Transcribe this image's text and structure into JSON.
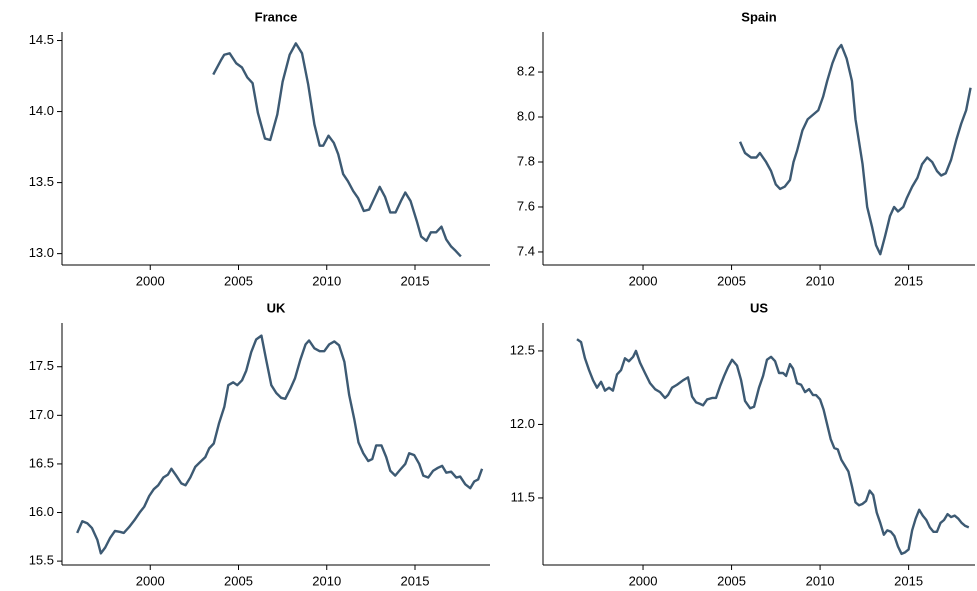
{
  "chart_data": [
    {
      "type": "line",
      "title": "France",
      "color": "#3d5a73",
      "xlim": [
        1995.0,
        2019.25
      ],
      "xticks": [
        2000,
        2005,
        2010,
        2015
      ],
      "ylim": [
        12.92,
        14.56
      ],
      "yticks": [
        {
          "value": 13,
          "label": "13.0"
        },
        13.5,
        {
          "value": 14,
          "label": "14.0"
        },
        14.5
      ],
      "x": [
        2003.57,
        2004.0,
        2004.19,
        2004.5,
        2004.87,
        2005.2,
        2005.5,
        2005.8,
        2006.1,
        2006.5,
        2006.8,
        2007.2,
        2007.5,
        2007.9,
        2008.25,
        2008.6,
        2008.95,
        2009.3,
        2009.6,
        2009.8,
        2010.1,
        2010.4,
        2010.65,
        2010.93,
        2011.2,
        2011.5,
        2011.78,
        2012.1,
        2012.4,
        2012.7,
        2013.0,
        2013.3,
        2013.6,
        2013.9,
        2014.2,
        2014.45,
        2014.75,
        2015.1,
        2015.35,
        2015.65,
        2015.9,
        2016.2,
        2016.5,
        2016.77,
        2017.05,
        2017.3,
        2017.6
      ],
      "values": [
        14.26,
        14.36,
        14.4,
        14.41,
        14.34,
        14.31,
        14.24,
        14.2,
        13.99,
        13.81,
        13.8,
        13.98,
        14.21,
        14.4,
        14.48,
        14.41,
        14.19,
        13.91,
        13.76,
        13.76,
        13.83,
        13.78,
        13.7,
        13.56,
        13.51,
        13.44,
        13.39,
        13.3,
        13.31,
        13.39,
        13.47,
        13.4,
        13.29,
        13.29,
        13.37,
        13.43,
        13.37,
        13.23,
        13.12,
        13.09,
        13.15,
        13.15,
        13.19,
        13.1,
        13.05,
        13.02,
        12.98
      ]
    },
    {
      "type": "line",
      "title": "Spain",
      "color": "#3d5a73",
      "xlim": [
        1994.35,
        2018.75
      ],
      "xticks": [
        2000,
        2005,
        2010,
        2015
      ],
      "ylim": [
        7.342,
        8.378
      ],
      "yticks": [
        7.4,
        7.6,
        7.8,
        {
          "value": 8,
          "label": "8.0"
        },
        8.2
      ],
      "x": [
        2005.48,
        2005.76,
        2006.1,
        2006.4,
        2006.6,
        2006.95,
        2007.23,
        2007.5,
        2007.74,
        2008.0,
        2008.3,
        2008.5,
        2008.7,
        2009.0,
        2009.3,
        2009.6,
        2009.9,
        2010.17,
        2010.4,
        2010.7,
        2011.0,
        2011.2,
        2011.5,
        2011.8,
        2012.0,
        2012.4,
        2012.66,
        2012.94,
        2013.16,
        2013.4,
        2013.67,
        2013.95,
        2014.18,
        2014.4,
        2014.7,
        2014.9,
        2015.2,
        2015.5,
        2015.76,
        2016.05,
        2016.33,
        2016.6,
        2016.84,
        2017.1,
        2017.4,
        2017.7,
        2017.97,
        2018.25,
        2018.5
      ],
      "values": [
        7.89,
        7.84,
        7.82,
        7.82,
        7.84,
        7.8,
        7.76,
        7.7,
        7.68,
        7.69,
        7.72,
        7.8,
        7.85,
        7.94,
        7.99,
        8.01,
        8.03,
        8.09,
        8.16,
        8.24,
        8.3,
        8.32,
        8.26,
        8.16,
        7.99,
        7.79,
        7.6,
        7.51,
        7.43,
        7.39,
        7.47,
        7.56,
        7.6,
        7.58,
        7.6,
        7.64,
        7.69,
        7.73,
        7.79,
        7.82,
        7.8,
        7.76,
        7.74,
        7.75,
        7.81,
        7.9,
        7.97,
        8.03,
        8.13
      ]
    },
    {
      "type": "line",
      "title": "UK",
      "color": "#3d5a73",
      "xlim": [
        1995.0,
        2019.25
      ],
      "xticks": [
        2000,
        2005,
        2010,
        2015
      ],
      "ylim": [
        15.46,
        17.95
      ],
      "yticks": [
        15.5,
        {
          "value": 16,
          "label": "16.0"
        },
        16.5,
        {
          "value": 17,
          "label": "17.0"
        },
        17.5
      ],
      "x": [
        1995.86,
        1996.15,
        1996.43,
        1996.7,
        1997.0,
        1997.2,
        1997.45,
        1997.73,
        1998.0,
        1998.3,
        1998.5,
        1998.8,
        1999.1,
        1999.4,
        1999.66,
        1999.94,
        2000.2,
        2000.45,
        2000.74,
        2001.0,
        2001.2,
        2001.47,
        2001.76,
        2002.0,
        2002.27,
        2002.55,
        2002.83,
        2003.12,
        2003.34,
        2003.6,
        2003.9,
        2004.2,
        2004.42,
        2004.7,
        2004.93,
        2005.2,
        2005.44,
        2005.72,
        2006.0,
        2006.3,
        2006.57,
        2006.86,
        2007.14,
        2007.42,
        2007.65,
        2007.93,
        2008.2,
        2008.5,
        2008.8,
        2009.0,
        2009.3,
        2009.6,
        2009.86,
        2010.14,
        2010.43,
        2010.7,
        2011.0,
        2011.27,
        2011.56,
        2011.8,
        2012.07,
        2012.35,
        2012.58,
        2012.8,
        2013.1,
        2013.37,
        2013.6,
        2013.88,
        2014.16,
        2014.45,
        2014.67,
        2014.96,
        2015.24,
        2015.47,
        2015.75,
        2016.03,
        2016.3,
        2016.54,
        2016.77,
        2017.05,
        2017.34,
        2017.56,
        2017.85,
        2018.13,
        2018.36,
        2018.58,
        2018.8
      ],
      "values": [
        15.79,
        15.91,
        15.89,
        15.84,
        15.72,
        15.58,
        15.64,
        15.74,
        15.81,
        15.8,
        15.79,
        15.85,
        15.92,
        16.0,
        16.06,
        16.17,
        16.24,
        16.28,
        16.36,
        16.39,
        16.45,
        16.38,
        16.3,
        16.28,
        16.36,
        16.47,
        16.52,
        16.57,
        16.66,
        16.71,
        16.92,
        17.09,
        17.31,
        17.34,
        17.31,
        17.36,
        17.46,
        17.65,
        17.78,
        17.82,
        17.57,
        17.31,
        17.23,
        17.18,
        17.17,
        17.27,
        17.38,
        17.57,
        17.73,
        17.77,
        17.69,
        17.66,
        17.66,
        17.73,
        17.76,
        17.72,
        17.55,
        17.21,
        16.96,
        16.72,
        16.61,
        16.53,
        16.55,
        16.69,
        16.69,
        16.57,
        16.43,
        16.38,
        16.44,
        16.5,
        16.61,
        16.59,
        16.5,
        16.38,
        16.36,
        16.43,
        16.46,
        16.48,
        16.41,
        16.42,
        16.36,
        16.37,
        16.29,
        16.25,
        16.32,
        16.34,
        16.45
      ]
    },
    {
      "type": "line",
      "title": "US",
      "color": "#3d5a73",
      "xlim": [
        1994.35,
        2018.75
      ],
      "xticks": [
        2000,
        2005,
        2010,
        2015
      ],
      "ylim": [
        11.044,
        12.69
      ],
      "yticks": [
        11.5,
        {
          "value": 12,
          "label": "12.0"
        },
        12.5
      ],
      "x": [
        1996.27,
        1996.5,
        1996.72,
        1996.95,
        1997.18,
        1997.4,
        1997.63,
        1997.85,
        1998.08,
        1998.3,
        1998.53,
        1998.76,
        1998.98,
        1999.2,
        1999.44,
        1999.6,
        1999.83,
        2000.11,
        2000.4,
        2000.68,
        2000.96,
        2001.24,
        2001.41,
        2001.64,
        2001.92,
        2002.26,
        2002.54,
        2002.77,
        2003.0,
        2003.22,
        2003.39,
        2003.62,
        2003.9,
        2004.12,
        2004.35,
        2004.58,
        2004.8,
        2005.03,
        2005.31,
        2005.54,
        2005.76,
        2006.05,
        2006.27,
        2006.55,
        2006.78,
        2007.0,
        2007.23,
        2007.46,
        2007.68,
        2007.91,
        2008.08,
        2008.3,
        2008.47,
        2008.7,
        2008.93,
        2009.15,
        2009.38,
        2009.6,
        2009.77,
        2010.0,
        2010.2,
        2010.4,
        2010.6,
        2010.8,
        2011.0,
        2011.2,
        2011.4,
        2011.6,
        2011.8,
        2012.0,
        2012.2,
        2012.4,
        2012.6,
        2012.8,
        2013.0,
        2013.2,
        2013.4,
        2013.6,
        2013.8,
        2014.0,
        2014.2,
        2014.4,
        2014.6,
        2014.8,
        2015.0,
        2015.2,
        2015.4,
        2015.6,
        2015.8,
        2016.0,
        2016.2,
        2016.4,
        2016.6,
        2016.8,
        2017.0,
        2017.2,
        2017.4,
        2017.6,
        2017.8,
        2018.0,
        2018.2,
        2018.4
      ],
      "values": [
        12.58,
        12.56,
        12.45,
        12.37,
        12.3,
        12.25,
        12.29,
        12.23,
        12.25,
        12.23,
        12.34,
        12.37,
        12.45,
        12.43,
        12.46,
        12.5,
        12.42,
        12.35,
        12.28,
        12.24,
        12.22,
        12.18,
        12.2,
        12.25,
        12.27,
        12.3,
        12.32,
        12.19,
        12.15,
        12.14,
        12.13,
        12.17,
        12.18,
        12.18,
        12.26,
        12.33,
        12.39,
        12.44,
        12.4,
        12.3,
        12.16,
        12.11,
        12.12,
        12.25,
        12.33,
        12.44,
        12.46,
        12.43,
        12.35,
        12.35,
        12.33,
        12.41,
        12.38,
        12.28,
        12.27,
        12.22,
        12.24,
        12.2,
        12.2,
        12.17,
        12.1,
        12.0,
        11.9,
        11.84,
        11.83,
        11.76,
        11.72,
        11.68,
        11.58,
        11.47,
        11.45,
        11.46,
        11.48,
        11.55,
        11.52,
        11.4,
        11.33,
        11.25,
        11.28,
        11.27,
        11.24,
        11.17,
        11.12,
        11.13,
        11.15,
        11.28,
        11.36,
        11.42,
        11.38,
        11.35,
        11.3,
        11.27,
        11.27,
        11.33,
        11.35,
        11.39,
        11.37,
        11.38,
        11.36,
        11.33,
        11.31,
        11.3
      ]
    }
  ]
}
